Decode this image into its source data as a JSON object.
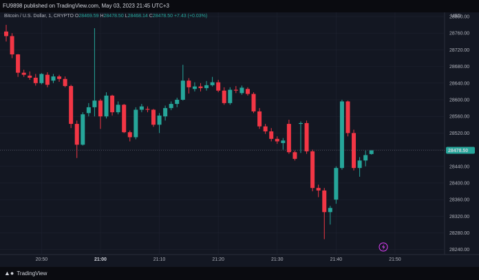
{
  "header": {
    "published": "FU9898 published on TradingView.com, May 03, 2023 21:45 UTC+3"
  },
  "legend": {
    "symbol": "Bitcoin / U.S. Dollar, 1, CRYPTO",
    "o_label": "O",
    "o_value": "28469.59",
    "h_label": "H",
    "h_value": "28478.50",
    "l_label": "L",
    "l_value": "28468.14",
    "c_label": "C",
    "c_value": "28478.50",
    "change": "+7.43 (+0.03%)"
  },
  "currency": "USD",
  "price_badge": "28478.50",
  "footer": {
    "brand": "TradingView"
  },
  "colors": {
    "up": "#26a69a",
    "down": "#f23645",
    "background": "#131722",
    "grid": "#1f2330",
    "badge": "#26a69a"
  },
  "icons": {
    "lightning": "lightning-icon",
    "logo": "tradingview-logo-icon"
  },
  "chart_data": {
    "type": "candlestick",
    "y_ticks": [
      "28800.00",
      "28760.00",
      "28720.00",
      "28680.00",
      "28640.00",
      "28600.00",
      "28560.00",
      "28520.00",
      "28480.00",
      "28440.00",
      "28400.00",
      "28360.00",
      "28320.00",
      "28280.00",
      "28240.00"
    ],
    "x_ticks": [
      {
        "label": "20:50",
        "minute": 6
      },
      {
        "label": "21:00",
        "minute": 16
      },
      {
        "label": "21:10",
        "minute": 26
      },
      {
        "label": "21:20",
        "minute": 36
      },
      {
        "label": "21:30",
        "minute": 46
      },
      {
        "label": "21:40",
        "minute": 56
      },
      {
        "label": "21:50",
        "minute": 66
      }
    ],
    "ylim": [
      28228,
      28810
    ],
    "xlim": [
      0,
      75
    ],
    "last_price": 28478.5,
    "candles": [
      {
        "m": 0,
        "o": 28764,
        "h": 28780,
        "l": 28740,
        "c": 28753
      },
      {
        "m": 1,
        "o": 28753,
        "h": 28760,
        "l": 28700,
        "c": 28709
      },
      {
        "m": 2,
        "o": 28709,
        "h": 28710,
        "l": 28655,
        "c": 28665
      },
      {
        "m": 3,
        "o": 28665,
        "h": 28672,
        "l": 28655,
        "c": 28660
      },
      {
        "m": 4,
        "o": 28658,
        "h": 28668,
        "l": 28648,
        "c": 28653
      },
      {
        "m": 5,
        "o": 28653,
        "h": 28662,
        "l": 28634,
        "c": 28640
      },
      {
        "m": 6,
        "o": 28640,
        "h": 28664,
        "l": 28637,
        "c": 28662
      },
      {
        "m": 7,
        "o": 28660,
        "h": 28666,
        "l": 28630,
        "c": 28636
      },
      {
        "m": 8,
        "o": 28646,
        "h": 28662,
        "l": 28640,
        "c": 28656
      },
      {
        "m": 9,
        "o": 28656,
        "h": 28660,
        "l": 28643,
        "c": 28650
      },
      {
        "m": 10,
        "o": 28650,
        "h": 28656,
        "l": 28630,
        "c": 28633
      },
      {
        "m": 11,
        "o": 28633,
        "h": 28636,
        "l": 28532,
        "c": 28542
      },
      {
        "m": 12,
        "o": 28542,
        "h": 28550,
        "l": 28460,
        "c": 28492
      },
      {
        "m": 13,
        "o": 28492,
        "h": 28570,
        "l": 28490,
        "c": 28565
      },
      {
        "m": 14,
        "o": 28568,
        "h": 28592,
        "l": 28560,
        "c": 28582
      },
      {
        "m": 15,
        "o": 28582,
        "h": 28772,
        "l": 28560,
        "c": 28598
      },
      {
        "m": 16,
        "o": 28598,
        "h": 28602,
        "l": 28530,
        "c": 28560
      },
      {
        "m": 17,
        "o": 28560,
        "h": 28618,
        "l": 28555,
        "c": 28610
      },
      {
        "m": 18,
        "o": 28610,
        "h": 28612,
        "l": 28562,
        "c": 28570
      },
      {
        "m": 19,
        "o": 28570,
        "h": 28596,
        "l": 28565,
        "c": 28588
      },
      {
        "m": 20,
        "o": 28588,
        "h": 28590,
        "l": 28520,
        "c": 28522
      },
      {
        "m": 21,
        "o": 28522,
        "h": 28526,
        "l": 28500,
        "c": 28510
      },
      {
        "m": 22,
        "o": 28510,
        "h": 28582,
        "l": 28505,
        "c": 28576
      },
      {
        "m": 23,
        "o": 28576,
        "h": 28590,
        "l": 28570,
        "c": 28584
      },
      {
        "m": 24,
        "o": 28578,
        "h": 28584,
        "l": 28570,
        "c": 28576
      },
      {
        "m": 25,
        "o": 28576,
        "h": 28578,
        "l": 28535,
        "c": 28540
      },
      {
        "m": 26,
        "o": 28540,
        "h": 28568,
        "l": 28520,
        "c": 28562
      },
      {
        "m": 27,
        "o": 28560,
        "h": 28586,
        "l": 28550,
        "c": 28580
      },
      {
        "m": 28,
        "o": 28580,
        "h": 28596,
        "l": 28575,
        "c": 28590
      },
      {
        "m": 29,
        "o": 28590,
        "h": 28605,
        "l": 28582,
        "c": 28600
      },
      {
        "m": 30,
        "o": 28600,
        "h": 28684,
        "l": 28598,
        "c": 28646
      },
      {
        "m": 31,
        "o": 28646,
        "h": 28652,
        "l": 28615,
        "c": 28630
      },
      {
        "m": 32,
        "o": 28626,
        "h": 28642,
        "l": 28620,
        "c": 28632
      },
      {
        "m": 33,
        "o": 28632,
        "h": 28640,
        "l": 28620,
        "c": 28628
      },
      {
        "m": 34,
        "o": 28628,
        "h": 28645,
        "l": 28622,
        "c": 28635
      },
      {
        "m": 35,
        "o": 28635,
        "h": 28655,
        "l": 28632,
        "c": 28642
      },
      {
        "m": 36,
        "o": 28642,
        "h": 28648,
        "l": 28618,
        "c": 28622
      },
      {
        "m": 37,
        "o": 28622,
        "h": 28630,
        "l": 28588,
        "c": 28592
      },
      {
        "m": 38,
        "o": 28592,
        "h": 28630,
        "l": 28588,
        "c": 28624
      },
      {
        "m": 39,
        "o": 28624,
        "h": 28633,
        "l": 28616,
        "c": 28622
      },
      {
        "m": 40,
        "o": 28616,
        "h": 28634,
        "l": 28612,
        "c": 28629
      },
      {
        "m": 41,
        "o": 28626,
        "h": 28630,
        "l": 28610,
        "c": 28614
      },
      {
        "m": 42,
        "o": 28614,
        "h": 28618,
        "l": 28568,
        "c": 28572
      },
      {
        "m": 43,
        "o": 28572,
        "h": 28580,
        "l": 28530,
        "c": 28536
      },
      {
        "m": 44,
        "o": 28536,
        "h": 28542,
        "l": 28518,
        "c": 28524
      },
      {
        "m": 45,
        "o": 28524,
        "h": 28532,
        "l": 28500,
        "c": 28506
      },
      {
        "m": 46,
        "o": 28506,
        "h": 28512,
        "l": 28494,
        "c": 28500
      },
      {
        "m": 47,
        "o": 28496,
        "h": 28508,
        "l": 28480,
        "c": 28502
      },
      {
        "m": 48,
        "o": 28542,
        "h": 28552,
        "l": 28470,
        "c": 28474
      },
      {
        "m": 49,
        "o": 28474,
        "h": 28478,
        "l": 28454,
        "c": 28458
      },
      {
        "m": 50,
        "o": 28542,
        "h": 28548,
        "l": 28472,
        "c": 28544
      },
      {
        "m": 51,
        "o": 28544,
        "h": 28550,
        "l": 28470,
        "c": 28476
      },
      {
        "m": 52,
        "o": 28476,
        "h": 28480,
        "l": 28380,
        "c": 28388
      },
      {
        "m": 53,
        "o": 28388,
        "h": 28396,
        "l": 28366,
        "c": 28382
      },
      {
        "m": 54,
        "o": 28382,
        "h": 28388,
        "l": 28265,
        "c": 28330
      },
      {
        "m": 55,
        "o": 28330,
        "h": 28345,
        "l": 28300,
        "c": 28340
      },
      {
        "m": 56,
        "o": 28360,
        "h": 28440,
        "l": 28350,
        "c": 28436
      },
      {
        "m": 57,
        "o": 28436,
        "h": 28600,
        "l": 28432,
        "c": 28596
      },
      {
        "m": 58,
        "o": 28596,
        "h": 28598,
        "l": 28512,
        "c": 28520
      },
      {
        "m": 59,
        "o": 28520,
        "h": 28528,
        "l": 28430,
        "c": 28436
      },
      {
        "m": 60,
        "o": 28436,
        "h": 28462,
        "l": 28415,
        "c": 28454
      },
      {
        "m": 61,
        "o": 28454,
        "h": 28478,
        "l": 28440,
        "c": 28467
      },
      {
        "m": 62,
        "o": 28469.59,
        "h": 28478.5,
        "l": 28468.14,
        "c": 28478.5
      }
    ]
  }
}
